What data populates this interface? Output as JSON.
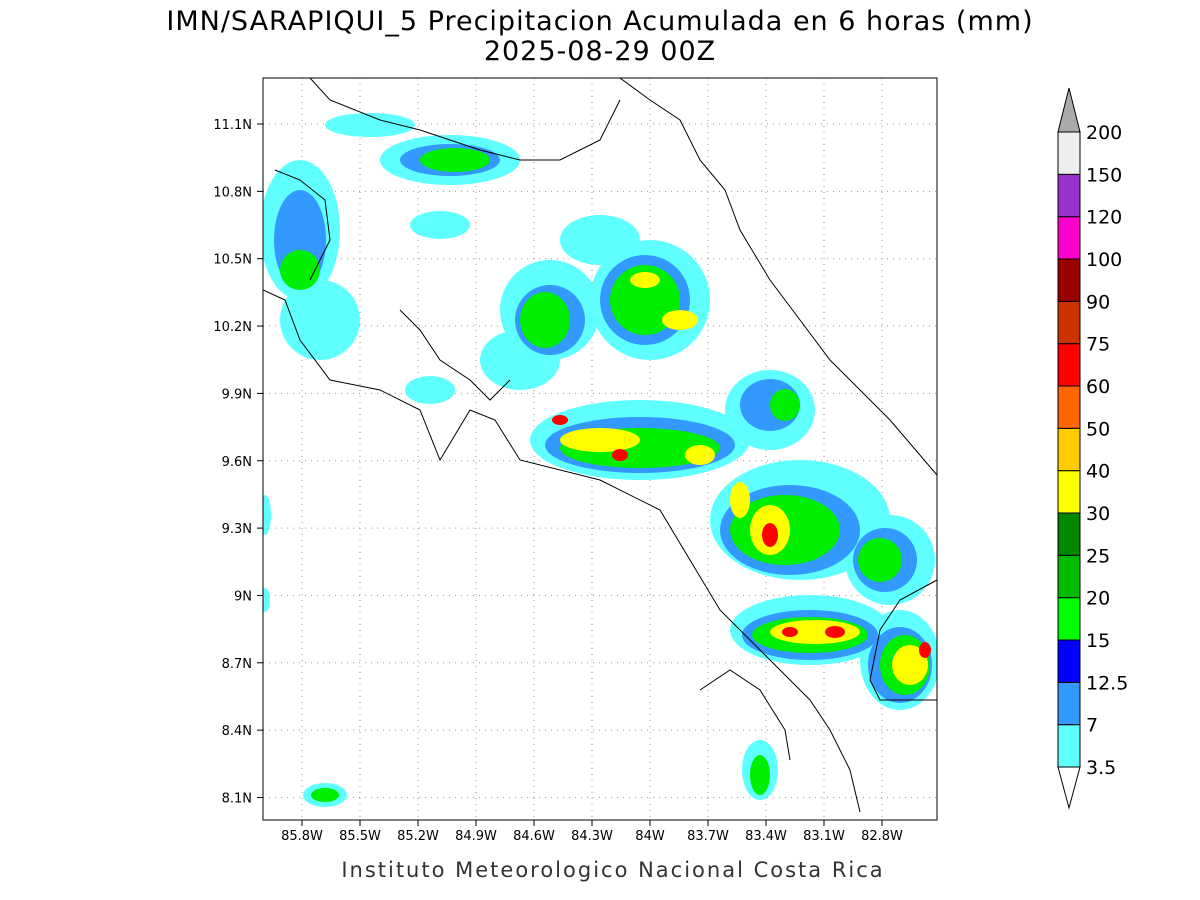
{
  "title": "IMN/SARAPIQUI_5 Precipitacion Acumulada en 6 horas (mm)",
  "subtitle": "2025-08-29 00Z",
  "lat_labels": [
    "11.1N",
    "10.8N",
    "10.5N",
    "10.2N",
    "9.9N",
    "9.6N",
    "9.3N",
    "9N",
    "8.7N",
    "8.4N",
    "8.1N"
  ],
  "lon_labels": [
    "85.8W",
    "85.5W",
    "85.2W",
    "84.9W",
    "84.6W",
    "84.3W",
    "84W",
    "83.7W",
    "83.4W",
    "83.1W",
    "82.8W"
  ],
  "colorbar": {
    "levels": [
      3.5,
      7,
      12.5,
      15,
      20,
      25,
      30,
      40,
      50,
      60,
      75,
      90,
      100,
      120,
      150,
      200
    ],
    "colors": [
      "#ffffff",
      "#5fffff",
      "#3399ff",
      "#0000ff",
      "#00ff00",
      "#00bb00",
      "#008800",
      "#ffff00",
      "#ffcc00",
      "#ff6600",
      "#ff0000",
      "#cc3300",
      "#990000",
      "#ff00cc",
      "#9933cc",
      "#eeeeee",
      "#aaaaaa"
    ]
  },
  "footer": "Instituto Meteorologico Nacional Costa Rica"
}
